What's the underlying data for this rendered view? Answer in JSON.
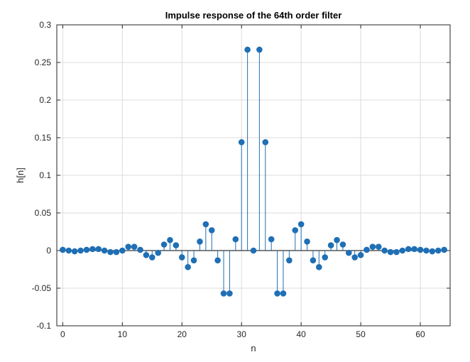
{
  "chart_data": {
    "type": "stem",
    "title": "Impulse response of the 64th order filter",
    "xlabel": "n",
    "ylabel": "h[n]",
    "xlim": [
      -1,
      65
    ],
    "ylim": [
      -0.1,
      0.3
    ],
    "xticks": [
      0,
      10,
      20,
      30,
      40,
      50,
      60
    ],
    "xtick_labels": [
      "0",
      "10",
      "20",
      "30",
      "40",
      "50",
      "60"
    ],
    "yticks": [
      -0.1,
      -0.05,
      0,
      0.05,
      0.1,
      0.15,
      0.2,
      0.25,
      0.3
    ],
    "ytick_labels": [
      "-0.1",
      "-0.05",
      "0",
      "0.05",
      "0.1",
      "0.15",
      "0.2",
      "0.25",
      "0.3"
    ],
    "grid": true,
    "color": "#1f6fb5",
    "x": [
      0,
      1,
      2,
      3,
      4,
      5,
      6,
      7,
      8,
      9,
      10,
      11,
      12,
      13,
      14,
      15,
      16,
      17,
      18,
      19,
      20,
      21,
      22,
      23,
      24,
      25,
      26,
      27,
      28,
      29,
      30,
      31,
      32,
      33,
      34,
      35,
      36,
      37,
      38,
      39,
      40,
      41,
      42,
      43,
      44,
      45,
      46,
      47,
      48,
      49,
      50,
      51,
      52,
      53,
      54,
      55,
      56,
      57,
      58,
      59,
      60,
      61,
      62,
      63,
      64
    ],
    "y": [
      0.001,
      0,
      -0.001,
      0,
      0.001,
      0.002,
      0.002,
      0,
      -0.002,
      -0.002,
      0,
      0.005,
      0.005,
      0.001,
      -0.006,
      -0.009,
      -0.003,
      0.008,
      0.014,
      0.007,
      -0.009,
      -0.022,
      -0.013,
      0.012,
      0.035,
      0.027,
      -0.013,
      -0.057,
      -0.057,
      0.015,
      0.144,
      0.267,
      0,
      0.267,
      0.144,
      0.015,
      -0.057,
      -0.057,
      -0.013,
      0.027,
      0.035,
      0.012,
      -0.013,
      -0.022,
      -0.009,
      0.007,
      0.014,
      0.008,
      -0.003,
      -0.009,
      -0.006,
      0.001,
      0.005,
      0.005,
      0,
      -0.002,
      -0.002,
      0,
      0.002,
      0.002,
      0.001,
      0,
      -0.001,
      0,
      0.001
    ]
  }
}
